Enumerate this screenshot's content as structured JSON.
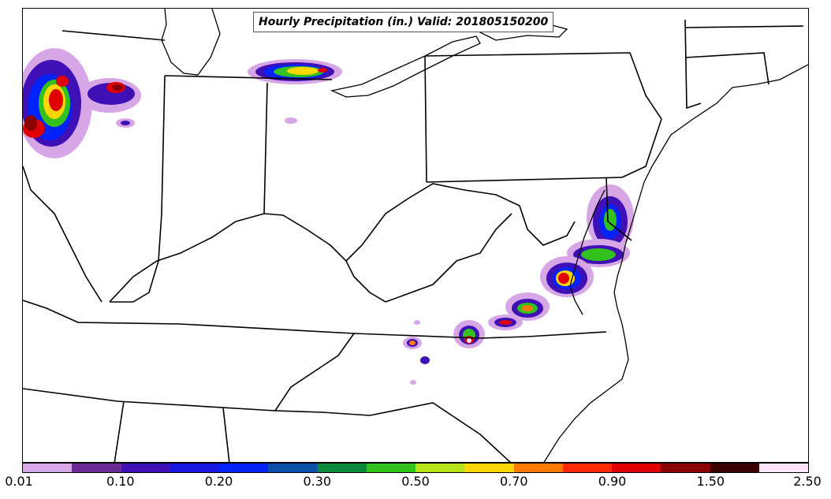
{
  "title": "Hourly Precipitation (in.) Valid: 201805150200",
  "colorbar": {
    "colors": [
      "#d7a6e6",
      "#6c2b94",
      "#3f10b5",
      "#1717e0",
      "#0022ff",
      "#0b4fa8",
      "#0a8a3a",
      "#33c11e",
      "#b6e21a",
      "#ffd700",
      "#ff7b00",
      "#ff2a00",
      "#e00000",
      "#8b0000",
      "#3b0000",
      "#ffe4fb"
    ],
    "tick_labels": [
      "0.01",
      "0.10",
      "0.20",
      "0.30",
      "0.50",
      "0.70",
      "0.90",
      "1.50",
      "2.50"
    ]
  },
  "precip_cells": [
    {
      "region": "northern-illinois-wisconsin",
      "max_in": 1.5
    },
    {
      "region": "southern-michigan",
      "max_in": 0.9
    },
    {
      "region": "maryland-delaware",
      "max_in": 0.7
    },
    {
      "region": "virginia",
      "max_in": 0.9
    },
    {
      "region": "north-carolina-virginia-border",
      "max_in": 1.5
    }
  ]
}
